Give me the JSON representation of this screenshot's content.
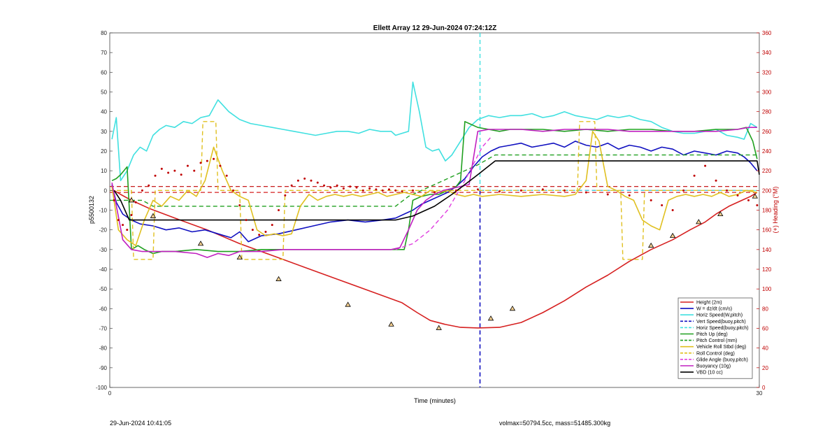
{
  "footer": {
    "timestamp": "29-Jun-2024 10:41:05",
    "mass_info": "volmax=50794.5cc, mass=51485.300kg"
  },
  "chart_data": {
    "type": "line",
    "title": "Ellett Array 12 29-Jun-2024 07:24:12Z",
    "xlabel": "Time (minutes)",
    "ylabel": "p5500132",
    "y2label": "(+) Heading (°M)",
    "xlim": [
      0,
      30
    ],
    "ylim": [
      -100,
      80
    ],
    "y2lim": [
      0,
      360
    ],
    "xticks": [
      "0",
      "30"
    ],
    "yticks": [
      "80",
      "70",
      "60",
      "50",
      "40",
      "30",
      "20",
      "10",
      "0",
      "-10",
      "-20",
      "-30",
      "-40",
      "-50",
      "-60",
      "-70",
      "-80",
      "-90",
      "-100"
    ],
    "y2ticks": [
      "360",
      "340",
      "320",
      "300",
      "280",
      "260",
      "240",
      "220",
      "200",
      "180",
      "160",
      "140",
      "120",
      "100",
      "80",
      "60",
      "40",
      "20",
      "0"
    ],
    "grid": false,
    "legend_position": "bottom-right",
    "colors": {
      "height": "#d62020",
      "w": "#1010c0",
      "horiz": "#40e0e0",
      "pitch": "#20a020",
      "roll": "#e0c020",
      "glide": "#e040e0",
      "buoy": "#c020c0",
      "vbd": "#000000",
      "heading": "#c00000"
    },
    "vline_x": 17.1,
    "series": [
      {
        "name": "Height (2m)",
        "color": "#d62020",
        "dash": false,
        "width": 1.6,
        "x": [
          0.2,
          0.5,
          1,
          1.8,
          3,
          4.5,
          6,
          7.5,
          9,
          10.5,
          12,
          13.5,
          14.2,
          14.8,
          15.5,
          16.2,
          17,
          18,
          19,
          20,
          21,
          22,
          23,
          24,
          25,
          26,
          26.8,
          27.5,
          28,
          28.6,
          29.2,
          29.6,
          29.9
        ],
        "y": [
          0,
          -2,
          -5,
          -9,
          -14,
          -20,
          -27,
          -33,
          -39,
          -45,
          -51,
          -57,
          -62,
          -66,
          -68,
          -69.5,
          -69.8,
          -69.5,
          -67,
          -62,
          -56,
          -49,
          -43,
          -36,
          -30,
          -25,
          -20,
          -16,
          -12,
          -8,
          -5,
          -3,
          -1
        ]
      },
      {
        "name": "W = dz/dt (cm/s)",
        "color": "#1010c0",
        "dash": false,
        "width": 1.6,
        "x": [
          0.1,
          0.3,
          0.6,
          1,
          1.4,
          2,
          2.6,
          3.2,
          3.8,
          4.4,
          5,
          5.6,
          6,
          6.4,
          7,
          7.8,
          8.6,
          9.4,
          10.2,
          11,
          11.8,
          12.6,
          13.2,
          13.6,
          14,
          14.4,
          14.8,
          15.2,
          15.6,
          16,
          16.4,
          16.8,
          17.2,
          17.6,
          18,
          18.5,
          19,
          19.5,
          20,
          20.5,
          21,
          21.5,
          22,
          22.5,
          23,
          23.5,
          24,
          24.5,
          25,
          25.5,
          26,
          26.5,
          27,
          27.5,
          28,
          28.5,
          29,
          29.3,
          29.6,
          29.9
        ],
        "y": [
          3,
          -6,
          -12,
          -15,
          -17,
          -18,
          -20,
          -19,
          -21,
          -20,
          -22,
          -24,
          -21,
          -26,
          -23,
          -22,
          -20,
          -18,
          -16,
          -15,
          -16,
          -15,
          -14,
          -12,
          -10,
          -7,
          -5,
          -3,
          -1,
          2,
          6,
          12,
          17,
          20,
          22,
          23,
          24,
          22,
          23,
          24,
          22,
          25,
          23,
          22,
          24,
          21,
          23,
          22,
          20,
          22,
          21,
          18,
          20,
          19,
          18,
          20,
          19,
          17,
          14,
          10
        ]
      },
      {
        "name": "Horiz Speed(W,pitch)",
        "color": "#40e0e0",
        "dash": false,
        "width": 1.6,
        "x": [
          0.1,
          0.3,
          0.5,
          0.8,
          1.1,
          1.4,
          1.7,
          2,
          2.3,
          2.6,
          3,
          3.4,
          3.8,
          4.2,
          4.6,
          5,
          5.5,
          6,
          6.5,
          7,
          7.5,
          8,
          8.5,
          9,
          9.5,
          10,
          10.5,
          11,
          11.5,
          12,
          12.5,
          13,
          13.2,
          13.5,
          13.8,
          14,
          14.3,
          14.6,
          14.9,
          15.2,
          15.5,
          15.8,
          16.2,
          16.6,
          17,
          17.5,
          18,
          18.5,
          19,
          19.5,
          20,
          20.5,
          21,
          21.5,
          22,
          22.5,
          23,
          23.5,
          24,
          24.5,
          25,
          25.5,
          26,
          26.5,
          27,
          27.5,
          28,
          28.5,
          29,
          29.3,
          29.6,
          29.9
        ],
        "y": [
          26,
          37,
          5,
          10,
          18,
          22,
          20,
          28,
          31,
          33,
          32,
          35,
          34,
          37,
          38,
          46,
          40,
          36,
          34,
          33,
          32,
          31,
          30,
          29,
          28,
          29,
          30,
          30,
          29,
          31,
          30,
          30,
          28,
          29,
          30,
          55,
          40,
          22,
          20,
          21,
          15,
          18,
          25,
          32,
          36,
          38,
          37,
          38,
          38,
          39,
          37,
          38,
          40,
          38,
          37,
          36,
          38,
          37,
          38,
          36,
          35,
          32,
          30,
          29,
          29,
          30,
          31,
          28,
          27,
          26,
          34,
          32
        ]
      },
      {
        "name": "Vert Speed(buoy,pitch)",
        "color": "#1010c0",
        "dash": true,
        "width": 1.2,
        "x": [
          17.1,
          17.8,
          18.5,
          19.5,
          20.5,
          21.5,
          22.5,
          23.5,
          24.5,
          25.5,
          26.5,
          27.5,
          28.5,
          29.5
        ],
        "y": [
          0,
          0,
          0,
          0,
          0,
          0,
          0,
          0,
          0,
          0,
          0,
          0,
          0,
          0
        ]
      },
      {
        "name": "Horiz Speed(buoy,pitch)",
        "color": "#40e0e0",
        "dash": true,
        "width": 1.2,
        "x": [
          17.1,
          18,
          19,
          20,
          21,
          22,
          23,
          24,
          25,
          26,
          27,
          28,
          29,
          29.9
        ],
        "y": [
          0,
          0,
          0,
          0,
          0,
          0,
          0,
          0,
          0,
          0,
          0,
          0,
          0,
          0
        ]
      },
      {
        "name": "Pitch Up (deg)",
        "color": "#20a020",
        "dash": false,
        "width": 1.6,
        "x": [
          0.1,
          0.3,
          0.5,
          0.8,
          1,
          1.3,
          1.6,
          2,
          2.4,
          3,
          4,
          5,
          6,
          7,
          8,
          9,
          10,
          11,
          12,
          13,
          13.2,
          13.4,
          13.6,
          13.8,
          14,
          14.4,
          14.8,
          15.2,
          15.6,
          16,
          16.2,
          16.4,
          16.6,
          17,
          17.5,
          18,
          18.5,
          19,
          20,
          21,
          22,
          23,
          24,
          25,
          26,
          27,
          28,
          29,
          29.4,
          29.7,
          29.9
        ],
        "y": [
          5,
          6,
          8,
          12,
          -30,
          -28,
          -30,
          -32,
          -31,
          -31,
          -30,
          -31,
          -31,
          -30,
          -30,
          -30,
          -30,
          -30,
          -30,
          -30,
          -30,
          -30,
          -30,
          -20,
          -5,
          -3,
          -2,
          -2,
          0,
          2,
          5,
          35,
          34,
          32,
          31,
          30,
          31,
          31,
          31,
          30,
          31,
          30,
          31,
          31,
          30,
          30,
          31,
          31,
          32,
          25,
          16
        ]
      },
      {
        "name": "Pitch Control (mm)",
        "color": "#20a020",
        "dash": true,
        "width": 1.4,
        "x": [
          0,
          1.5,
          2,
          13.2,
          13.8,
          17,
          17.8,
          29.9
        ],
        "y": [
          -5,
          -5,
          -8,
          -8,
          -3,
          13,
          18,
          18
        ]
      },
      {
        "name": "Vehicle Roll Stbd (deg)",
        "color": "#e0c020",
        "dash": false,
        "width": 1.6,
        "x": [
          0.1,
          0.4,
          0.8,
          1.2,
          1.6,
          2,
          2.4,
          2.8,
          3.2,
          3.6,
          4,
          4.4,
          4.8,
          5.2,
          5.6,
          6,
          6.4,
          6.8,
          7.2,
          7.6,
          8,
          8.4,
          8.8,
          9.2,
          9.6,
          10,
          10.4,
          10.8,
          11.2,
          11.6,
          12,
          12.4,
          12.8,
          13.2,
          13.6,
          14,
          14.4,
          14.8,
          15.2,
          15.6,
          16,
          16.4,
          16.8,
          17.2,
          18,
          19,
          20,
          21,
          21.5,
          22,
          22.3,
          22.6,
          23,
          23.4,
          23.8,
          24.2,
          24.6,
          25,
          25.4,
          25.8,
          26.2,
          26.6,
          27,
          27.4,
          27.8,
          28.2,
          28.6,
          29,
          29.4,
          29.9
        ],
        "y": [
          2,
          -20,
          -25,
          -28,
          -15,
          -5,
          -8,
          -3,
          -5,
          0,
          -3,
          5,
          22,
          10,
          0,
          -3,
          -5,
          -20,
          -23,
          -22,
          -23,
          -22,
          -8,
          -2,
          -5,
          -3,
          -2,
          -3,
          -2,
          -3,
          -2,
          -1,
          -3,
          -2,
          -1,
          -2,
          -3,
          0,
          -1,
          0,
          -2,
          -3,
          -2,
          -3,
          -2,
          -3,
          -2,
          -3,
          -2,
          5,
          30,
          25,
          2,
          0,
          -3,
          -5,
          -15,
          -18,
          -20,
          -5,
          -3,
          -2,
          -3,
          -2,
          -3,
          -1,
          -3,
          -2,
          0,
          -1
        ]
      },
      {
        "name": "Roll Control (deg)",
        "color": "#e0c020",
        "dash": true,
        "width": 1.4,
        "x": [
          0,
          1,
          1.1,
          2,
          2.1,
          4.2,
          4.3,
          4.9,
          5,
          6,
          6.1,
          8,
          8.1,
          9.6,
          9.7,
          21.6,
          21.7,
          22.4,
          22.5,
          23.6,
          23.7,
          24.6,
          24.7,
          29.9
        ],
        "y": [
          0,
          0,
          -35,
          -35,
          0,
          0,
          35,
          35,
          0,
          0,
          -35,
          -35,
          0,
          0,
          0,
          0,
          35,
          35,
          0,
          0,
          -35,
          -35,
          0,
          0
        ]
      },
      {
        "name": "Glide Angle (buoy,pitch)",
        "color": "#e040e0",
        "dash": true,
        "width": 1.4,
        "x": [
          13.2,
          14,
          14.8,
          15.6,
          16.4,
          17.2,
          17.6
        ],
        "y": [
          -30,
          -27,
          -20,
          -10,
          5,
          22,
          27
        ]
      },
      {
        "name": "Buoyancy (10g)",
        "color": "#c020c0",
        "dash": false,
        "width": 1.6,
        "x": [
          0.1,
          0.6,
          1,
          1.5,
          2,
          3,
          4,
          4.5,
          5,
          5.5,
          6,
          7,
          8,
          9,
          10,
          11,
          12,
          13,
          13.4,
          13.8,
          14.2,
          14.6,
          15,
          15.4,
          15.8,
          16.2,
          16.6,
          17,
          17.5,
          18,
          19,
          20,
          21,
          22,
          23,
          24,
          25,
          26,
          27,
          28,
          29,
          29.5,
          29.9
        ],
        "y": [
          4,
          -25,
          -30,
          -31,
          -31,
          -31,
          -32,
          -34,
          -32,
          -33,
          -31,
          -31,
          -30,
          -30,
          -30,
          -30,
          -30,
          -30,
          -29,
          -20,
          -10,
          -5,
          -2,
          0,
          1,
          2,
          3,
          30,
          31,
          31,
          31,
          30,
          31,
          31,
          31,
          30,
          30,
          30,
          30,
          30,
          31,
          32,
          32
        ]
      },
      {
        "name": "VBD (10 cc)",
        "color": "#000000",
        "dash": false,
        "width": 1.6,
        "x": [
          0.2,
          0.5,
          0.9,
          1,
          13.2,
          14,
          15,
          15.8,
          16.4,
          17,
          17.8,
          29.9,
          30
        ],
        "y": [
          0,
          -5,
          -15,
          -15,
          -15,
          -13,
          -8,
          -2,
          3,
          8,
          15,
          15,
          8
        ]
      }
    ],
    "reference_lines": [
      {
        "color": "#c00000",
        "dash": true,
        "y": 2
      },
      {
        "color": "#d62020",
        "dash": true,
        "y": -1
      }
    ],
    "heading": {
      "label": "(+) Heading (°M)",
      "color": "#c00000",
      "axis": "right",
      "x": [
        0.2,
        0.4,
        0.6,
        0.8,
        1,
        1.2,
        1.5,
        1.8,
        2.1,
        2.4,
        2.7,
        3,
        3.3,
        3.6,
        3.9,
        4.2,
        4.5,
        4.8,
        5.1,
        5.4,
        5.7,
        6,
        6.3,
        6.6,
        6.9,
        7.2,
        7.5,
        7.8,
        8.1,
        8.4,
        8.7,
        9,
        9.3,
        9.6,
        9.9,
        10.2,
        10.5,
        10.8,
        11.1,
        11.4,
        11.7,
        12,
        12.3,
        12.6,
        12.9,
        13.2,
        13.5,
        14,
        15,
        16,
        17,
        18,
        19,
        20,
        21,
        22,
        23,
        24,
        25,
        25.5,
        26,
        26.5,
        27,
        27.5,
        28,
        28.5,
        29,
        29.5,
        29.9
      ],
      "y": [
        190,
        170,
        165,
        160,
        175,
        188,
        200,
        205,
        215,
        222,
        218,
        220,
        216,
        225,
        220,
        228,
        230,
        232,
        225,
        215,
        200,
        185,
        170,
        160,
        155,
        158,
        165,
        180,
        195,
        205,
        210,
        212,
        210,
        208,
        205,
        203,
        205,
        202,
        204,
        203,
        200,
        202,
        201,
        200,
        201,
        200,
        199,
        200,
        198,
        200,
        201,
        199,
        200,
        201,
        200,
        198,
        196,
        195,
        190,
        185,
        180,
        200,
        215,
        225,
        210,
        200,
        195,
        190,
        185
      ]
    },
    "triangles": {
      "x": [
        1,
        2,
        4.2,
        6,
        7.8,
        11,
        13,
        15.2,
        17.6,
        18.6,
        25,
        26,
        27.2,
        28.2,
        29.8
      ],
      "y": [
        -5,
        -13,
        -27,
        -34,
        -45,
        -58,
        -68,
        -69.8,
        -65,
        -60,
        -28,
        -23,
        -16,
        -12,
        -3
      ]
    }
  }
}
